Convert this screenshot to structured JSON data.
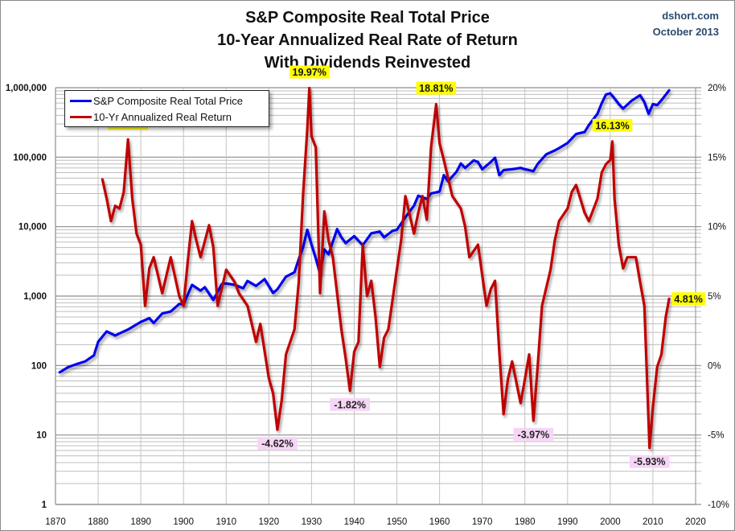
{
  "chart_data": {
    "type": "line",
    "title": [
      "S&P Composite Real Total Price",
      "10-Year Annualized Real Rate of Return",
      "With Dividends Reinvested"
    ],
    "source": [
      "dshort.com",
      "October 2013"
    ],
    "xlabel": "",
    "ylabel": "",
    "xlim": [
      1870,
      2020
    ],
    "x_ticks": [
      "1870",
      "1880",
      "1890",
      "1900",
      "1910",
      "1920",
      "1930",
      "1940",
      "1950",
      "1960",
      "1970",
      "1980",
      "1990",
      "2000",
      "2010",
      "2020"
    ],
    "y_left": {
      "scale": "log",
      "range": [
        1,
        1000000
      ],
      "ticks": [
        "1",
        "10",
        "100",
        "1,000",
        "10,000",
        "100,000",
        "1,000,000"
      ]
    },
    "y_right": {
      "scale": "linear",
      "range": [
        -10,
        20
      ],
      "ticks": [
        "-10%",
        "-5%",
        "0%",
        "5%",
        "10%",
        "15%",
        "20%"
      ]
    },
    "grid": true,
    "legend": {
      "placement": "top-left",
      "entries": [
        {
          "label": "S&P Composite Real Total Price",
          "color": "#0000ee"
        },
        {
          "label": "10-Yr Annualized Real Return",
          "color": "#c00000"
        }
      ]
    },
    "series": [
      {
        "name": "S&P Composite Real Total Price",
        "axis": "left",
        "color": "#0000ee",
        "x": [
          1871,
          1873,
          1875,
          1877,
          1879,
          1880,
          1882,
          1884,
          1885,
          1887,
          1890,
          1892,
          1893,
          1895,
          1897,
          1899,
          1900,
          1902,
          1904,
          1905,
          1907,
          1909,
          1910,
          1912,
          1914,
          1915,
          1917,
          1919,
          1921,
          1922,
          1924,
          1926,
          1927,
          1928,
          1929,
          1930,
          1931,
          1932,
          1933,
          1934,
          1936,
          1937,
          1938,
          1940,
          1942,
          1944,
          1946,
          1947,
          1949,
          1950,
          1952,
          1954,
          1955,
          1957,
          1958,
          1960,
          1961,
          1962,
          1964,
          1965,
          1966,
          1968,
          1969,
          1970,
          1972,
          1973,
          1974,
          1975,
          1977,
          1979,
          1980,
          1982,
          1983,
          1985,
          1987,
          1988,
          1990,
          1992,
          1994,
          1995,
          1997,
          1998,
          1999,
          2000,
          2001,
          2002,
          2003,
          2005,
          2007,
          2008,
          2009,
          2010,
          2011,
          2012,
          2013.8
        ],
        "values": [
          80,
          95,
          105,
          115,
          140,
          220,
          310,
          270,
          290,
          330,
          425,
          480,
          410,
          560,
          600,
          770,
          760,
          1450,
          1200,
          1340,
          880,
          1500,
          1520,
          1450,
          1300,
          1650,
          1400,
          1750,
          1110,
          1250,
          1900,
          2200,
          3400,
          5000,
          9000,
          5500,
          3500,
          2100,
          4700,
          4000,
          9200,
          7000,
          5800,
          7300,
          5400,
          8000,
          8500,
          7000,
          8700,
          9000,
          13600,
          20000,
          27800,
          25000,
          30000,
          32000,
          55000,
          45000,
          62000,
          81000,
          70000,
          90000,
          85000,
          67000,
          85000,
          98000,
          55000,
          65000,
          67000,
          70000,
          67000,
          63000,
          80000,
          110000,
          125000,
          135000,
          160000,
          215000,
          230000,
          290000,
          420000,
          600000,
          800000,
          830000,
          700000,
          580000,
          500000,
          650000,
          780000,
          620000,
          420000,
          580000,
          560000,
          660000,
          915000
        ]
      },
      {
        "name": "10-Yr Annualized Real Return",
        "axis": "right",
        "color": "#c00000",
        "x": [
          1881,
          1882,
          1883,
          1884,
          1885,
          1886,
          1887,
          1888,
          1889,
          1890,
          1891,
          1892,
          1893,
          1895,
          1897,
          1899,
          1900,
          1901,
          1902,
          1903,
          1904,
          1906,
          1907,
          1908,
          1910,
          1912,
          1913,
          1915,
          1917,
          1918,
          1920,
          1921,
          1922,
          1923,
          1924,
          1926,
          1927,
          1928,
          1929,
          1929.5,
          1930,
          1931,
          1932,
          1933,
          1934,
          1935,
          1937,
          1938,
          1939,
          1940,
          1941,
          1942,
          1943,
          1944,
          1945,
          1946,
          1947,
          1948,
          1950,
          1951,
          1952,
          1954,
          1955,
          1956,
          1957,
          1958,
          1959.2,
          1960,
          1961,
          1963,
          1965,
          1966,
          1967,
          1969,
          1971,
          1972,
          1973,
          1974,
          1975,
          1976,
          1977,
          1979,
          1980,
          1981,
          1982,
          1983,
          1984,
          1986,
          1987,
          1988,
          1990,
          1991,
          1992,
          1994,
          1995,
          1997,
          1998,
          1999,
          2000,
          2000.5,
          2001,
          2002,
          2003,
          2004,
          2006,
          2007,
          2008,
          2009.2,
          2010,
          2011,
          2012,
          2013,
          2013.8
        ],
        "values": [
          13.4,
          12.0,
          10.4,
          11.5,
          11.3,
          12.5,
          16.28,
          12.0,
          9.5,
          8.7,
          4.3,
          7.0,
          7.8,
          5.2,
          7.8,
          5.0,
          4.3,
          7.5,
          10.4,
          9.0,
          7.8,
          10.1,
          8.5,
          4.3,
          6.9,
          6.0,
          5.2,
          4.3,
          1.7,
          3.0,
          -0.9,
          -2.0,
          -4.62,
          -2.5,
          0.8,
          2.6,
          6.0,
          12.2,
          17.0,
          19.97,
          16.5,
          15.7,
          5.2,
          11.1,
          9.0,
          7.8,
          2.6,
          0.5,
          -1.82,
          1.0,
          1.7,
          8.7,
          5.0,
          6.1,
          3.5,
          -0.1,
          2.0,
          2.6,
          6.9,
          9.0,
          12.2,
          9.5,
          11.0,
          12.2,
          10.5,
          15.7,
          18.81,
          16.0,
          14.8,
          12.2,
          11.3,
          10.0,
          7.8,
          8.7,
          4.3,
          5.5,
          6.1,
          1.0,
          -3.5,
          -1.0,
          0.3,
          -2.7,
          -1.0,
          0.8,
          -3.97,
          0.0,
          4.3,
          6.9,
          9.0,
          10.4,
          11.3,
          12.5,
          13.0,
          11.0,
          10.4,
          12.0,
          13.9,
          14.5,
          14.8,
          16.13,
          12.0,
          8.7,
          7.0,
          7.8,
          7.8,
          6.0,
          4.3,
          -5.93,
          -3.0,
          -0.1,
          0.8,
          3.5,
          4.81
        ]
      }
    ],
    "annotations": [
      {
        "text": "16.28%",
        "x": 1887,
        "value": 16.28,
        "type": "peak",
        "color": "#ffff00"
      },
      {
        "text": "19.97%",
        "x": 1929.5,
        "value": 19.97,
        "type": "peak",
        "color": "#ffff00"
      },
      {
        "text": "18.81%",
        "x": 1959.2,
        "value": 18.81,
        "type": "peak",
        "color": "#ffff00"
      },
      {
        "text": "16.13%",
        "x": 2000.5,
        "value": 16.13,
        "type": "peak",
        "color": "#ffff00"
      },
      {
        "text": "4.81%",
        "x": 2013.8,
        "value": 4.81,
        "type": "latest",
        "color": "#ffff00"
      },
      {
        "text": "-4.62%",
        "x": 1922,
        "value": -4.62,
        "type": "trough",
        "color": "#f6d5f6"
      },
      {
        "text": "-1.82%",
        "x": 1939,
        "value": -1.82,
        "type": "trough",
        "color": "#f6d5f6"
      },
      {
        "text": "-3.97%",
        "x": 1982,
        "value": -3.97,
        "type": "trough",
        "color": "#f6d5f6"
      },
      {
        "text": "-5.93%",
        "x": 2009.2,
        "value": -5.93,
        "type": "trough",
        "color": "#f6d5f6"
      }
    ]
  }
}
